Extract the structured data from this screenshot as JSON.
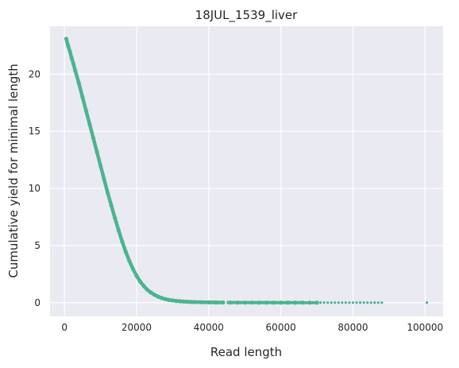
{
  "chart_data": {
    "type": "scatter",
    "title": "18JUL_1539_liver",
    "xlabel": "Read length",
    "ylabel": "Cumulative yield for minimal length",
    "xlim": [
      -4000,
      105000
    ],
    "ylim": [
      -1.2,
      24.2
    ],
    "xticks": [
      0,
      20000,
      40000,
      60000,
      80000,
      100000
    ],
    "yticks": [
      0,
      5,
      10,
      15,
      20
    ],
    "grid": true,
    "background": "#EAEAF2",
    "point_color": "#4CB391",
    "x": [
      500,
      1000,
      1500,
      2000,
      2500,
      3000,
      4000,
      5000,
      6000,
      7000,
      8000,
      9000,
      10000,
      11000,
      12000,
      13000,
      14000,
      15000,
      16000,
      17000,
      18000,
      19000,
      20000,
      21000,
      22000,
      23000,
      24000,
      25000,
      26000,
      27000,
      28000,
      29000,
      30000,
      31000,
      32000,
      33000,
      34000,
      35000,
      36000,
      38000,
      40000,
      42000,
      44000,
      46000,
      48000,
      50000,
      52000,
      54000,
      56000,
      58000,
      60000,
      62000,
      64000,
      66000,
      68000,
      70000,
      71000,
      72000,
      73000,
      74000,
      75000,
      76000,
      77000,
      78000,
      79000,
      80000,
      81000,
      82000,
      83000,
      84000,
      85000,
      86000,
      87000,
      88000,
      100500
    ],
    "y": [
      23.1,
      22.5,
      22.0,
      21.4,
      20.9,
      20.3,
      19.2,
      18.0,
      16.8,
      15.6,
      14.4,
      13.2,
      12.0,
      10.8,
      9.6,
      8.5,
      7.4,
      6.35,
      5.35,
      4.45,
      3.65,
      2.95,
      2.35,
      1.85,
      1.45,
      1.12,
      0.88,
      0.68,
      0.52,
      0.4,
      0.31,
      0.24,
      0.19,
      0.15,
      0.12,
      0.1,
      0.08,
      0.06,
      0.05,
      0.035,
      0.025,
      0.018,
      0.012,
      0.009,
      0.007,
      0.005,
      0.004,
      0.003,
      0.003,
      0.002,
      0.002,
      0.002,
      0.001,
      0.001,
      0.001,
      0.001,
      0.001,
      0.001,
      0.001,
      0.001,
      0.001,
      0.001,
      0.001,
      0.001,
      0.001,
      0.001,
      0.001,
      0.001,
      0.001,
      0.001,
      0.001,
      0.001,
      0.001,
      0.001,
      0.0
    ]
  }
}
